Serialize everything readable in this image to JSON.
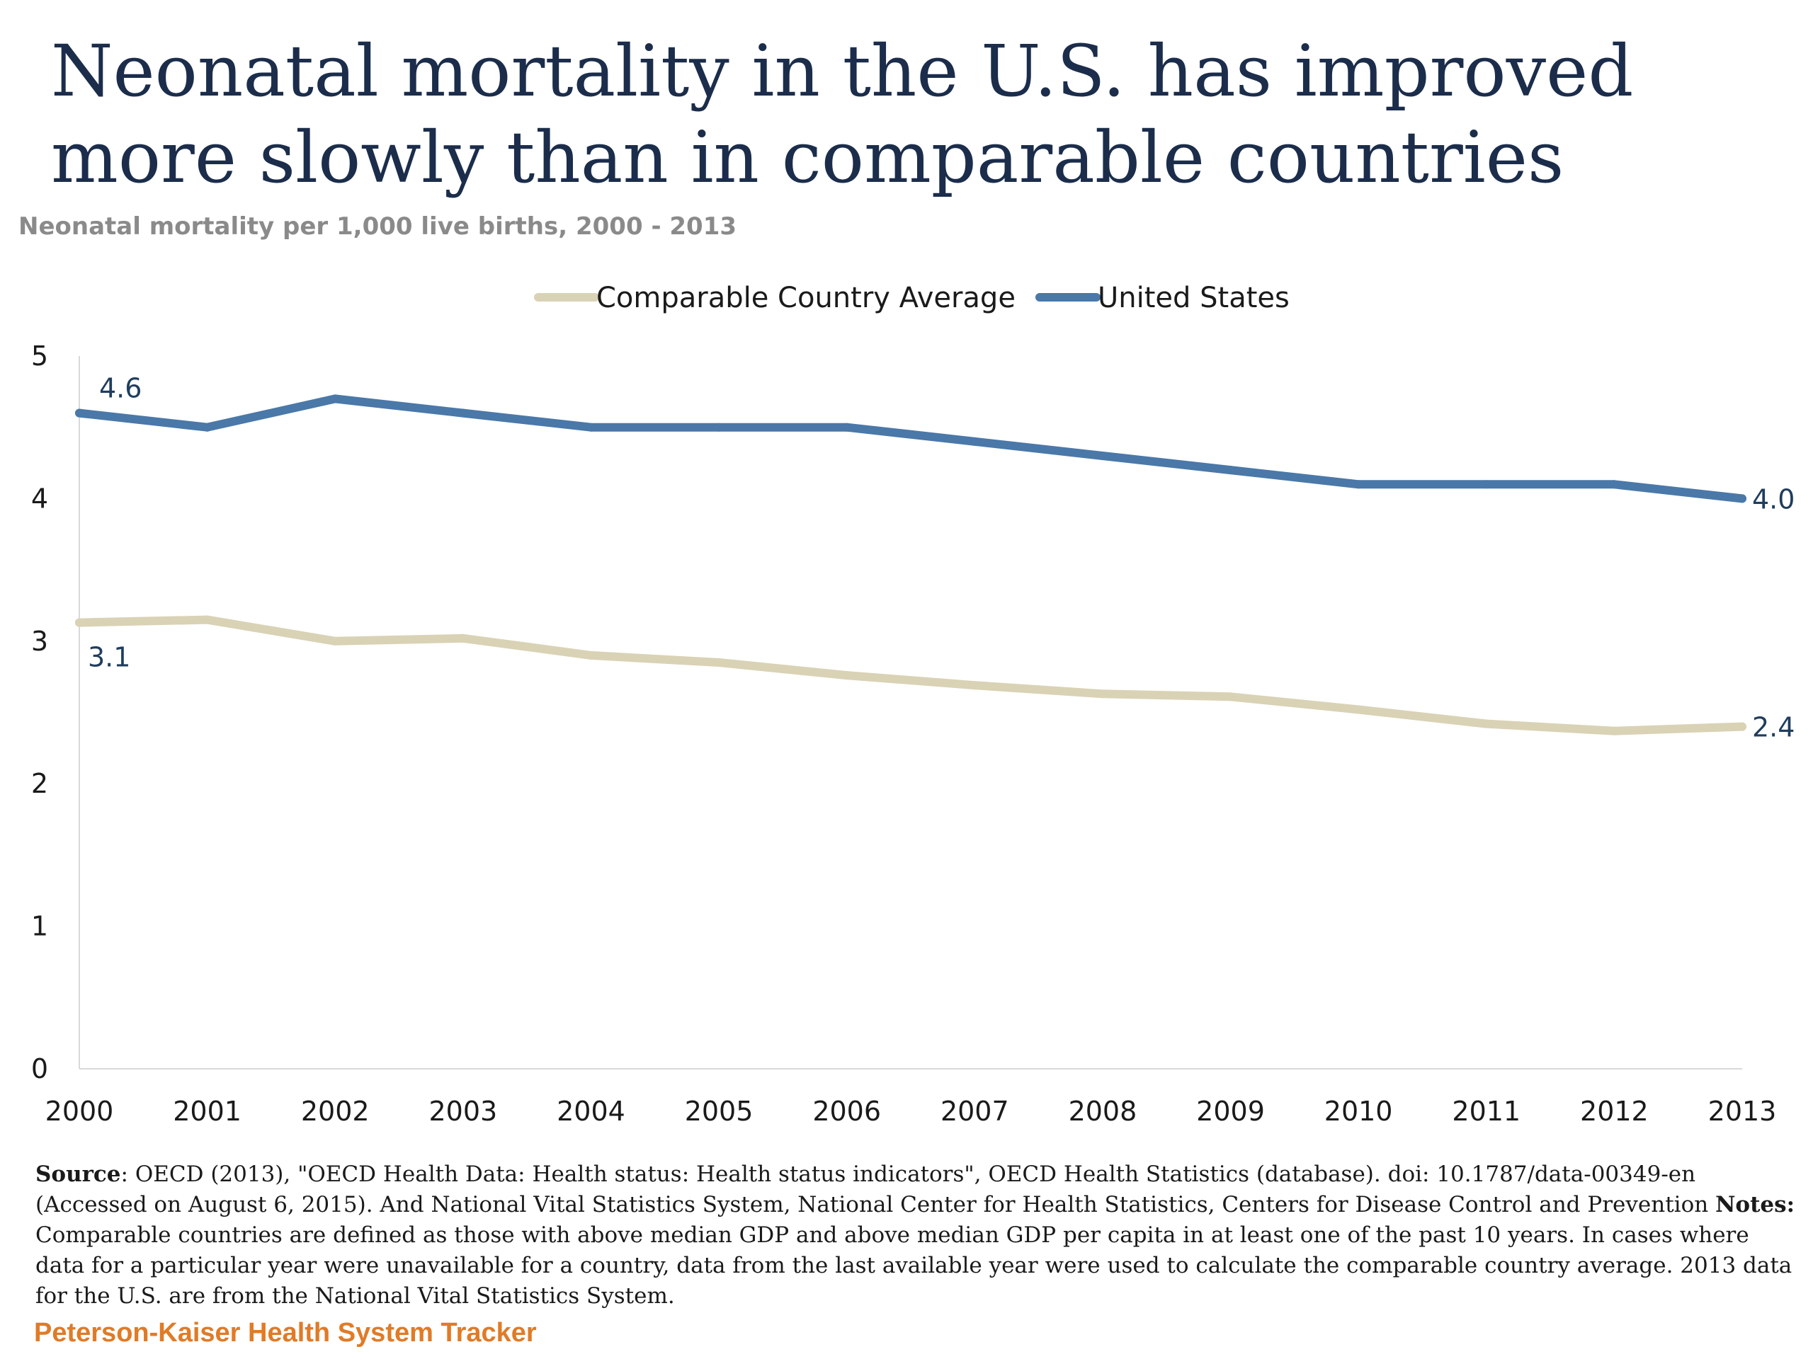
{
  "title": "Neonatal mortality in the U.S. has improved more slowly than in comparable countries",
  "subtitle": "Neonatal mortality per 1,000 live births, 2000 - 2013",
  "chart_data": {
    "type": "line",
    "x": [
      "2000",
      "2001",
      "2002",
      "2003",
      "2004",
      "2005",
      "2006",
      "2007",
      "2008",
      "2009",
      "2010",
      "2011",
      "2012",
      "2013"
    ],
    "ylim": [
      0,
      5
    ],
    "yticks": [
      "0",
      "1",
      "2",
      "3",
      "4",
      "5"
    ],
    "grid": false,
    "legend_position": "top",
    "series": [
      {
        "name": "Comparable Country Average",
        "color": "#d9d2b5",
        "values": [
          3.13,
          3.15,
          3.0,
          3.02,
          2.9,
          2.85,
          2.76,
          2.69,
          2.63,
          2.61,
          2.52,
          2.42,
          2.37,
          2.4
        ],
        "labels": [
          {
            "index": 0,
            "text": "3.1",
            "placement": "below"
          },
          {
            "index": 13,
            "text": "2.4",
            "placement": "right"
          }
        ]
      },
      {
        "name": "United States",
        "color": "#4a78a8",
        "values": [
          4.6,
          4.5,
          4.7,
          4.6,
          4.5,
          4.5,
          4.5,
          4.4,
          4.3,
          4.2,
          4.1,
          4.1,
          4.1,
          4.0
        ],
        "labels": [
          {
            "index": 0,
            "text": "4.6",
            "placement": "above"
          },
          {
            "index": 13,
            "text": "4.0",
            "placement": "right"
          }
        ]
      }
    ]
  },
  "footer": {
    "source_label": "Source",
    "source_text": ": OECD (2013), \"OECD Health Data: Health status: Health status indicators\", OECD Health Statistics (database). doi: 10.1787/data-00349-en (Accessed on August 6, 2015). And National Vital Statistics System, National Center for Health Statistics, Centers for Disease Control and Prevention ",
    "notes_label": "Notes:",
    "notes_text": " Comparable countries are defined as those with above median GDP and above median GDP per capita in at least one of the past 10 years. In cases where data for a particular year were unavailable for a country, data from the last available year were used to calculate the comparable country average. 2013 data for the U.S. are from the National Vital Statistics System.",
    "brand": "Peterson-Kaiser Health System Tracker"
  }
}
